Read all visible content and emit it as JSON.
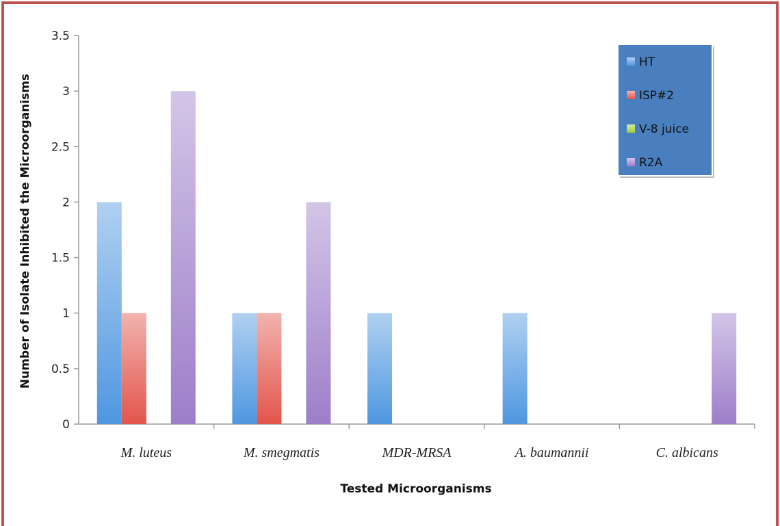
{
  "chart_data": {
    "type": "bar",
    "title": "",
    "xlabel": "Tested Microorganisms",
    "ylabel": "Number of Isolate Inhibited the Microorganisms",
    "ylim": [
      0,
      3.5
    ],
    "yticks": [
      "0",
      "0.5",
      "1",
      "1.5",
      "2",
      "2.5",
      "3",
      "3.5"
    ],
    "categories": [
      "M. luteus",
      "M. smegmatis",
      "MDR-MRSA",
      "A. baumannii",
      "C. albicans"
    ],
    "series": [
      {
        "name": "HT",
        "values": [
          2,
          1,
          1,
          1,
          0
        ],
        "color": "#4f97e0"
      },
      {
        "name": "ISP#2",
        "values": [
          1,
          1,
          0,
          0,
          0
        ],
        "color": "#e2554c"
      },
      {
        "name": "V-8 juice",
        "values": [
          0,
          0,
          0,
          0,
          0
        ],
        "color": "#a4cc3c"
      },
      {
        "name": "R2A",
        "values": [
          3,
          2,
          0,
          0,
          1
        ],
        "color": "#9d7ec9"
      }
    ],
    "legend_position": "top-right",
    "legend_background": "#4a7fbf",
    "frame_border_color": "#c0504d",
    "grid": false
  }
}
